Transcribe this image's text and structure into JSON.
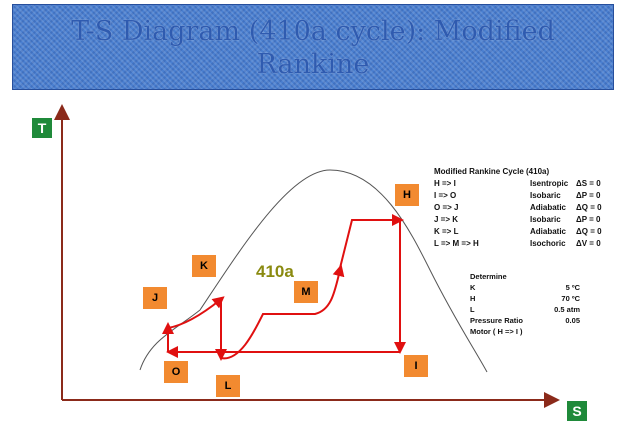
{
  "title": {
    "line1": "T-S Diagram (410a cycle): Modified",
    "line2": "Rankine"
  },
  "axes": {
    "y_label": "T",
    "x_label": "S"
  },
  "points": [
    {
      "id": "H",
      "label": "H"
    },
    {
      "id": "I",
      "label": "I"
    },
    {
      "id": "O",
      "label": "O"
    },
    {
      "id": "J",
      "label": "J"
    },
    {
      "id": "K",
      "label": "K"
    },
    {
      "id": "L",
      "label": "L"
    },
    {
      "id": "M",
      "label": "M"
    }
  ],
  "refrigerant_label": "410a",
  "legend": {
    "title": "Modified Rankine Cycle (410a)",
    "rows": [
      {
        "step": "H => I",
        "process": "Isentropic",
        "condition": "ΔS = 0"
      },
      {
        "step": "I => O",
        "process": "Isobaric",
        "condition": "ΔP = 0"
      },
      {
        "step": "O => J",
        "process": "Adiabatic",
        "condition": "ΔQ = 0"
      },
      {
        "step": "J => K",
        "process": "Isobaric",
        "condition": "ΔP = 0"
      },
      {
        "step": "K => L",
        "process": "Adiabatic",
        "condition": "ΔQ = 0"
      },
      {
        "step": "L => M => H",
        "process": "Isochoric",
        "condition": "ΔV = 0"
      }
    ]
  },
  "determine": {
    "title": "Determine",
    "rows": [
      {
        "key": "K",
        "value": "5 ºC"
      },
      {
        "key": "H",
        "value": "70 ºC"
      },
      {
        "key": "L",
        "value": "0.5 atm"
      },
      {
        "key": "Pressure Ratio",
        "value": "0.05"
      },
      {
        "key": "Motor ( H => I )",
        "value": ""
      }
    ]
  },
  "colors": {
    "cycle": "#e01010",
    "axis": "#8b2a1a",
    "dome": "#444444",
    "badge": "#f28a30",
    "axis_badge": "#1f8a3a"
  }
}
